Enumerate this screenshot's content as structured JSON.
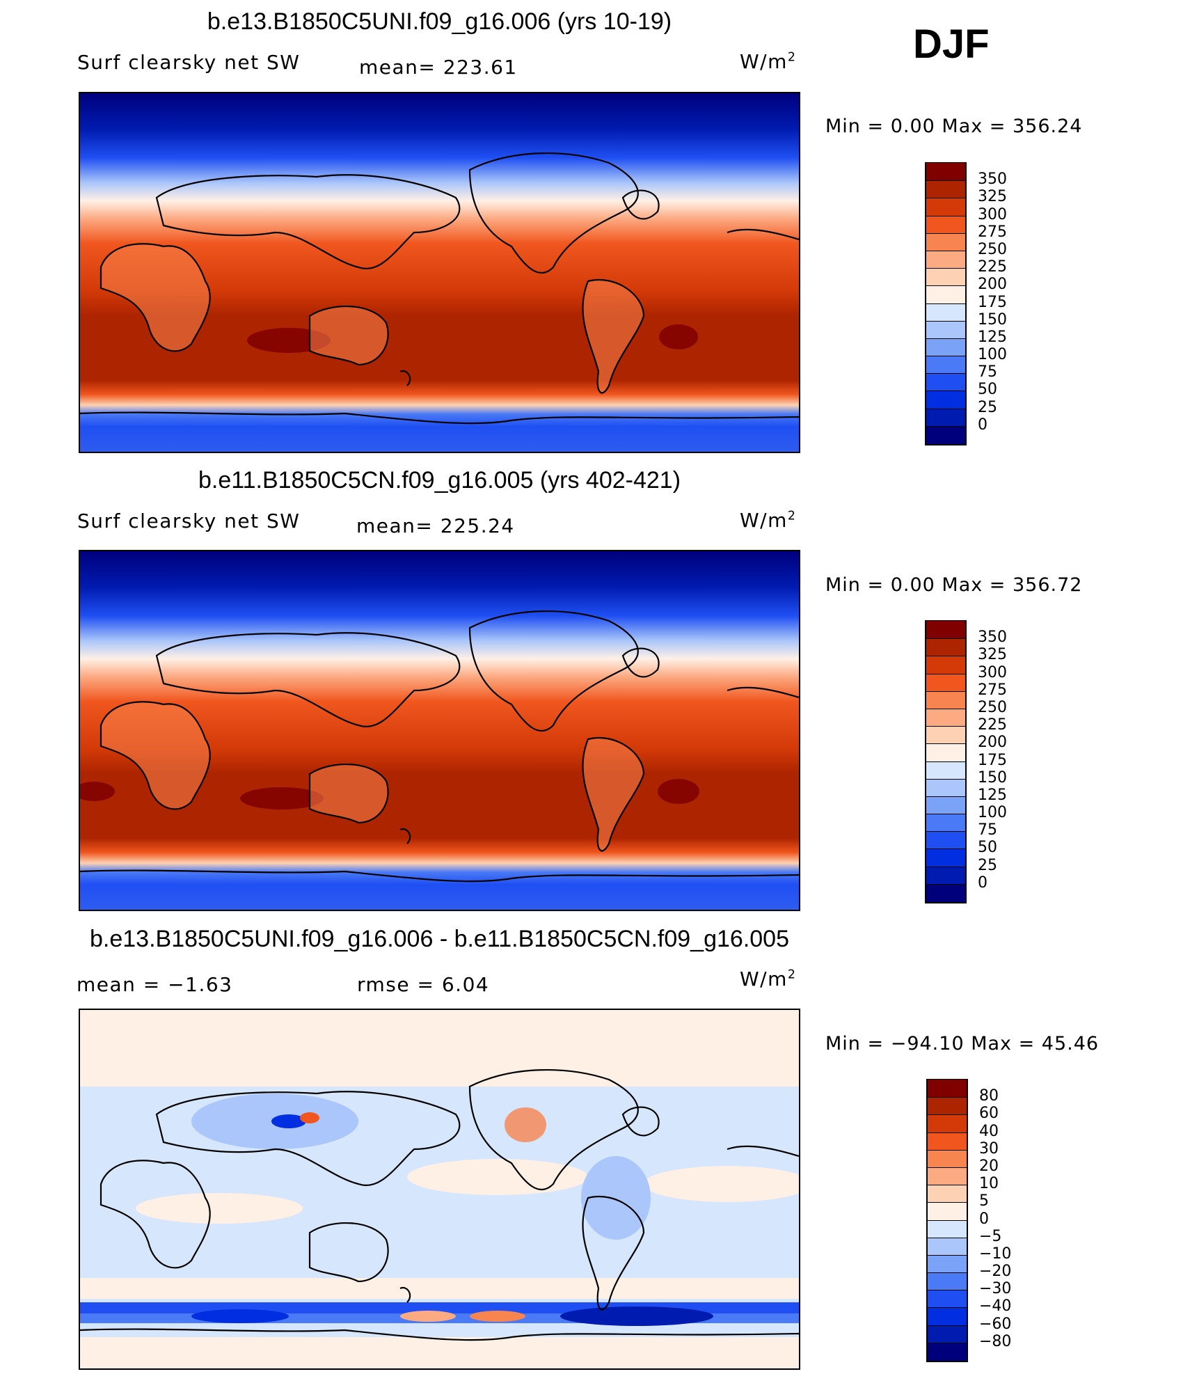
{
  "season": "DJF",
  "panels": [
    {
      "title": "b.e13.B1850C5UNI.f09_g16.006 (yrs 10-19)",
      "variable": "Surf clearsky net SW",
      "stat1": "mean=  223.61",
      "stat2": "",
      "units_base": "W/m",
      "units_exp": "2",
      "minmax": "Min =     0.00 Max  =  356.24",
      "colorbar": {
        "colors": [
          "#00007d",
          "#001bb0",
          "#002ee0",
          "#1f4ff2",
          "#4a7af5",
          "#7aa3f8",
          "#aac6fa",
          "#d6e6fc",
          "#fff0e6",
          "#fdd2b4",
          "#fcaa82",
          "#f8844f",
          "#f0561e",
          "#d43a08",
          "#ad2400",
          "#800000"
        ],
        "labels": [
          "350",
          "325",
          "300",
          "275",
          "250",
          "225",
          "200",
          "175",
          "150",
          "125",
          "100",
          "75",
          "50",
          "25",
          "0"
        ]
      }
    },
    {
      "title": "b.e11.B1850C5CN.f09_g16.005 (yrs 402-421)",
      "variable": "Surf clearsky net SW",
      "stat1": "mean=  225.24",
      "stat2": "",
      "units_base": "W/m",
      "units_exp": "2",
      "minmax": "Min =     0.00 Max  =  356.72",
      "colorbar": {
        "colors": [
          "#00007d",
          "#001bb0",
          "#002ee0",
          "#1f4ff2",
          "#4a7af5",
          "#7aa3f8",
          "#aac6fa",
          "#d6e6fc",
          "#fff0e6",
          "#fdd2b4",
          "#fcaa82",
          "#f8844f",
          "#f0561e",
          "#d43a08",
          "#ad2400",
          "#800000"
        ],
        "labels": [
          "350",
          "325",
          "300",
          "275",
          "250",
          "225",
          "200",
          "175",
          "150",
          "125",
          "100",
          "75",
          "50",
          "25",
          "0"
        ]
      }
    },
    {
      "title": "b.e13.B1850C5UNI.f09_g16.006 - b.e11.B1850C5CN.f09_g16.005",
      "variable": "mean =   −1.63",
      "stat1": "rmse =    6.04",
      "stat2": "",
      "units_base": "W/m",
      "units_exp": "2",
      "minmax": "Min = −94.10 Max =   45.46",
      "colorbar": {
        "colors": [
          "#00007d",
          "#001bb0",
          "#002ee0",
          "#1f4ff2",
          "#4a7af5",
          "#7aa3f8",
          "#aac6fa",
          "#d6e6fc",
          "#fff0e6",
          "#fdd2b4",
          "#fcaa82",
          "#f8844f",
          "#f0561e",
          "#d43a08",
          "#ad2400",
          "#800000"
        ],
        "labels": [
          "80",
          "60",
          "40",
          "30",
          "20",
          "10",
          "5",
          "0",
          "−5",
          "−10",
          "−20",
          "−30",
          "−40",
          "−60",
          "−80"
        ]
      }
    }
  ]
}
